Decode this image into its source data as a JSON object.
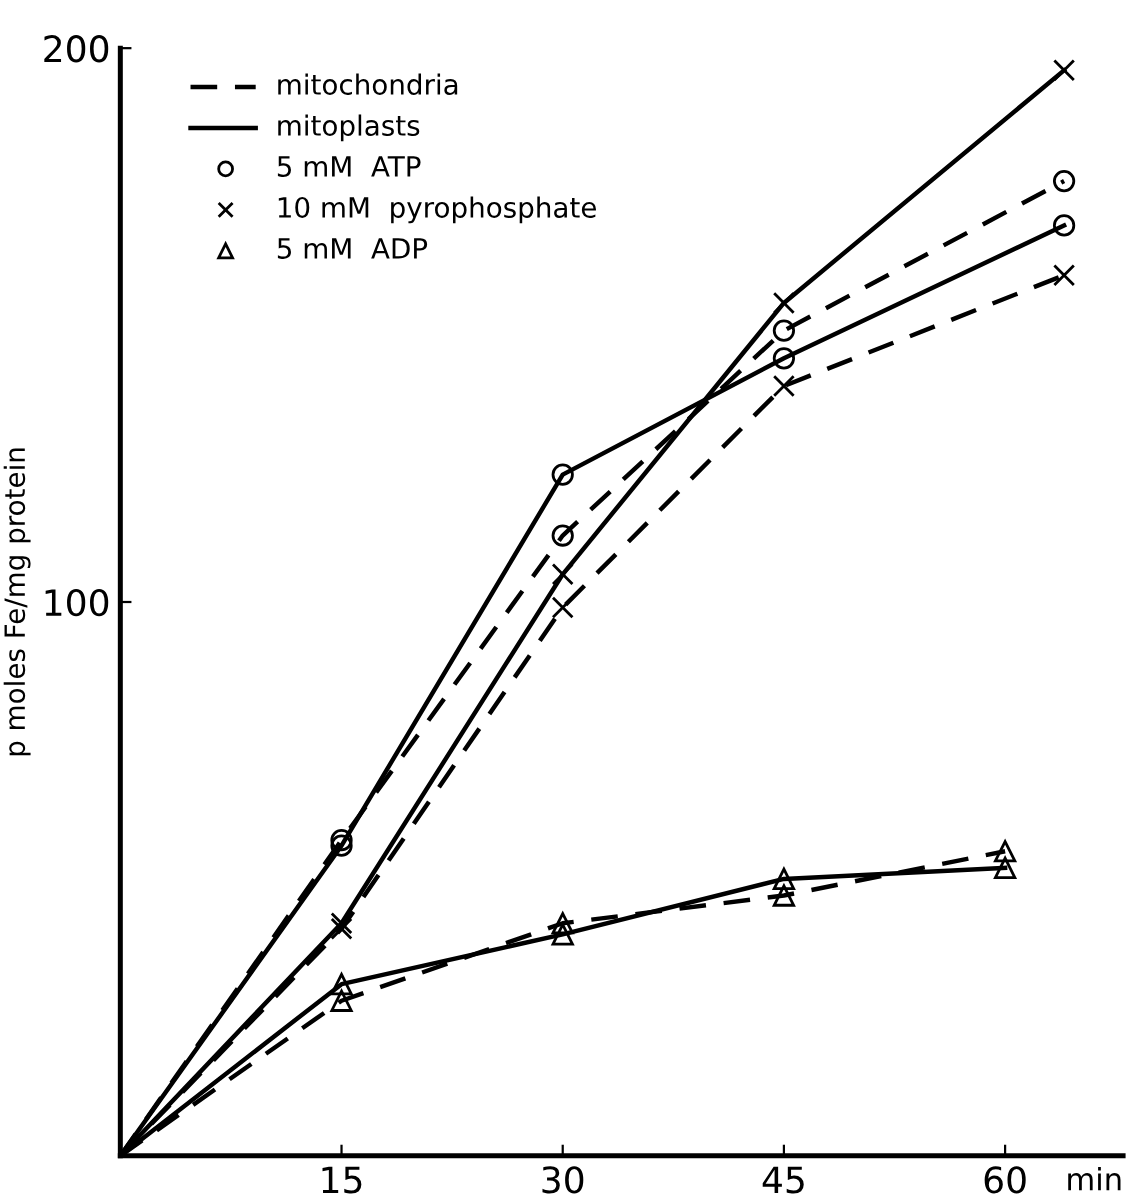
{
  "chart_data": {
    "type": "line",
    "xlabel": "min",
    "ylabel": "p moles Fe/mg protein",
    "x": [
      0,
      15,
      30,
      45,
      64
    ],
    "xlim": [
      0,
      68
    ],
    "ylim": [
      0,
      200
    ],
    "xticks": [
      15,
      30,
      45,
      60
    ],
    "yticks": [
      100,
      200
    ],
    "grid": false,
    "annotations": [
      "mitochondria",
      "mitoplasts",
      "5 mM  ATP",
      "10 mM  pyrophosphate",
      "5 mM  ADP"
    ],
    "series": [
      {
        "color": "#000000",
        "line_style": "dashed",
        "marker": "circle",
        "values": [
          0,
          57,
          112,
          149,
          176
        ]
      },
      {
        "color": "#000000",
        "line_style": "solid",
        "marker": "circle",
        "values": [
          0,
          56,
          123,
          144,
          168
        ]
      },
      {
        "color": "#000000",
        "line_style": "dashed",
        "marker": "cross",
        "values": [
          0,
          41,
          99,
          139,
          159
        ]
      },
      {
        "color": "#000000",
        "line_style": "solid",
        "marker": "cross",
        "values": [
          0,
          42,
          105,
          154,
          196
        ]
      },
      {
        "color": "#000000",
        "line_style": "dashed",
        "marker": "triangle",
        "x": [
          0,
          15,
          30,
          45,
          60
        ],
        "values": [
          0,
          28,
          42,
          47,
          55
        ]
      },
      {
        "color": "#000000",
        "line_style": "solid",
        "marker": "triangle",
        "x": [
          0,
          15,
          30,
          45,
          60
        ],
        "values": [
          0,
          31,
          40,
          50,
          52
        ]
      }
    ]
  }
}
